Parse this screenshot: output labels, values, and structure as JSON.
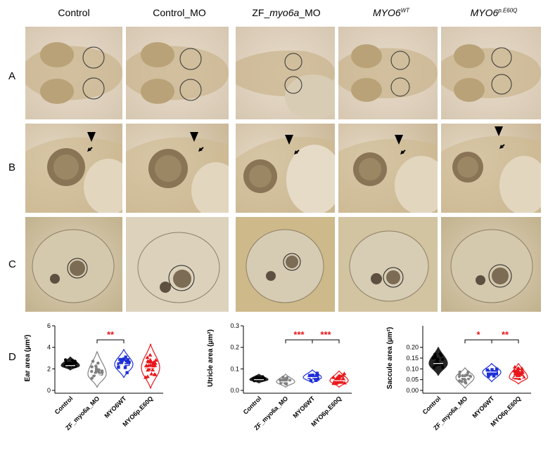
{
  "columns": [
    {
      "pre": "Control",
      "ital": "",
      "post": "",
      "sup": ""
    },
    {
      "pre": "Control_MO",
      "ital": "",
      "post": "",
      "sup": ""
    },
    {
      "pre": "ZF_",
      "ital": "myo6a",
      "post": "_MO",
      "sup": ""
    },
    {
      "pre": "",
      "ital": "MYO6",
      "post": "",
      "sup": "WT"
    },
    {
      "pre": "",
      "ital": "MYO6",
      "post": "",
      "sup": "p.E60Q"
    }
  ],
  "rows": [
    "A",
    "B",
    "C",
    "D"
  ],
  "chart_data": [
    {
      "type": "violin",
      "ylabel": "Ear area (µm²)",
      "ylim": [
        0,
        6
      ],
      "yticks": [
        "0",
        "2",
        "4",
        "6"
      ],
      "categories": [
        "Control",
        "ZF_myo6a_MO",
        "MYO6WT",
        "MYO6p.E60Q"
      ],
      "colors": [
        "#000000",
        "#808080",
        "#1f2fd6",
        "#e8161b"
      ],
      "medians": [
        2.3,
        1.5,
        2.4,
        2.1
      ],
      "ranges": [
        [
          1.9,
          3.1
        ],
        [
          0.3,
          3.6
        ],
        [
          1.2,
          3.8
        ],
        [
          0.2,
          4.3
        ]
      ],
      "n": [
        20,
        18,
        18,
        28
      ],
      "significance": [
        {
          "a": 1,
          "b": 2,
          "label": "**"
        }
      ]
    },
    {
      "type": "violin",
      "ylabel": "Utricle area (µm²)",
      "ylim": [
        0,
        0.3
      ],
      "yticks": [
        "0.0",
        "0.1",
        "0.2",
        "0.3"
      ],
      "categories": [
        "Control",
        "ZF_myo6a_MO",
        "MYO6WT",
        "MYO6p.E60Q"
      ],
      "colors": [
        "#000000",
        "#808080",
        "#1f2fd6",
        "#e8161b"
      ],
      "medians": [
        0.05,
        0.04,
        0.06,
        0.045
      ],
      "ranges": [
        [
          0.035,
          0.075
        ],
        [
          0.015,
          0.075
        ],
        [
          0.035,
          0.095
        ],
        [
          0.015,
          0.09
        ]
      ],
      "n": [
        20,
        18,
        18,
        28
      ],
      "significance": [
        {
          "a": 1,
          "b": 2,
          "label": "***"
        },
        {
          "a": 2,
          "b": 3,
          "label": "***"
        }
      ]
    },
    {
      "type": "violin",
      "ylabel": "Saccule area (µm²)",
      "ylim": [
        0,
        0.3
      ],
      "yticks": [
        "0.00",
        "0.05",
        "0.10",
        "0.15",
        "0.20"
      ],
      "categories": [
        "Control",
        "ZF_myo6a_MO",
        "MYO6WT",
        "MYO6p.E60Q"
      ],
      "colors": [
        "#000000",
        "#808080",
        "#1f2fd6",
        "#e8161b"
      ],
      "medians": [
        0.125,
        0.06,
        0.085,
        0.06
      ],
      "ranges": [
        [
          0.07,
          0.2
        ],
        [
          0.01,
          0.105
        ],
        [
          0.04,
          0.125
        ],
        [
          0.03,
          0.125
        ]
      ],
      "n": [
        20,
        18,
        18,
        28
      ],
      "significance": [
        {
          "a": 1,
          "b": 2,
          "label": "*"
        },
        {
          "a": 2,
          "b": 3,
          "label": "**"
        }
      ]
    }
  ]
}
